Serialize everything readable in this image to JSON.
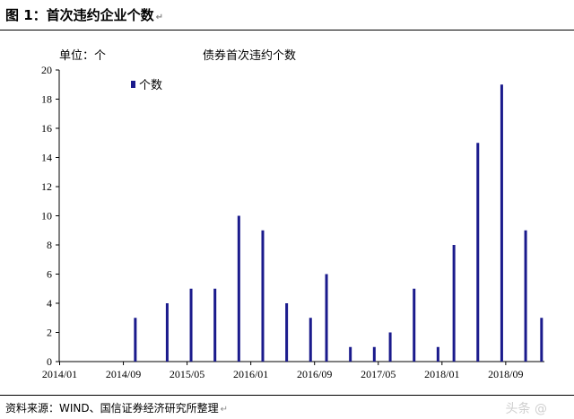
{
  "figure": {
    "title": "图 1：首次违约企业个数",
    "source": "资料来源：WIND、国信证券经济研究所整理",
    "watermark": "头条 @",
    "return_mark": "↵"
  },
  "chart_data": {
    "type": "bar",
    "unit_label": "单位：个",
    "title": "债券首次违约个数",
    "legend": "个数",
    "legend_position": "top-left",
    "bar_color": "#1a1a8c",
    "ylim": [
      0,
      20
    ],
    "yticks": [
      0,
      2,
      4,
      6,
      8,
      10,
      12,
      14,
      16,
      18,
      20
    ],
    "grid": false,
    "x_tick_labels": [
      "2014/01",
      "2014/09",
      "2015/05",
      "2016/01",
      "2016/09",
      "2017/05",
      "2018/01",
      "2018/09"
    ],
    "categories": [
      "2014/01",
      "2014/02",
      "2014/03",
      "2014/04",
      "2014/05",
      "2014/06",
      "2014/07",
      "2014/08",
      "2014/09",
      "2014/10",
      "2014/11",
      "2014/12",
      "2015/01",
      "2015/02",
      "2015/03",
      "2015/04",
      "2015/05",
      "2015/06",
      "2015/07",
      "2015/08",
      "2015/09",
      "2015/10",
      "2015/11",
      "2015/12",
      "2016/01",
      "2016/02",
      "2016/03",
      "2016/04",
      "2016/05",
      "2016/06",
      "2016/07",
      "2016/08",
      "2016/09",
      "2016/10",
      "2016/11",
      "2016/12",
      "2017/01",
      "2017/02",
      "2017/03",
      "2017/04",
      "2017/05",
      "2017/06",
      "2017/07",
      "2017/08",
      "2017/09",
      "2017/10",
      "2017/11",
      "2017/12",
      "2018/01",
      "2018/02",
      "2018/03",
      "2018/04",
      "2018/05",
      "2018/06",
      "2018/07",
      "2018/08",
      "2018/09",
      "2018/10",
      "2018/11",
      "2018/12",
      "2019/01"
    ],
    "values": [
      0,
      0,
      0,
      0,
      0,
      0,
      0,
      0,
      0,
      3,
      0,
      0,
      0,
      4,
      0,
      0,
      5,
      0,
      0,
      5,
      0,
      0,
      10,
      0,
      0,
      9,
      0,
      0,
      4,
      0,
      0,
      3,
      0,
      6,
      0,
      0,
      1,
      0,
      0,
      1,
      0,
      2,
      0,
      0,
      5,
      0,
      0,
      1,
      0,
      8,
      0,
      0,
      15,
      0,
      0,
      19,
      0,
      0,
      9,
      0,
      3
    ]
  }
}
